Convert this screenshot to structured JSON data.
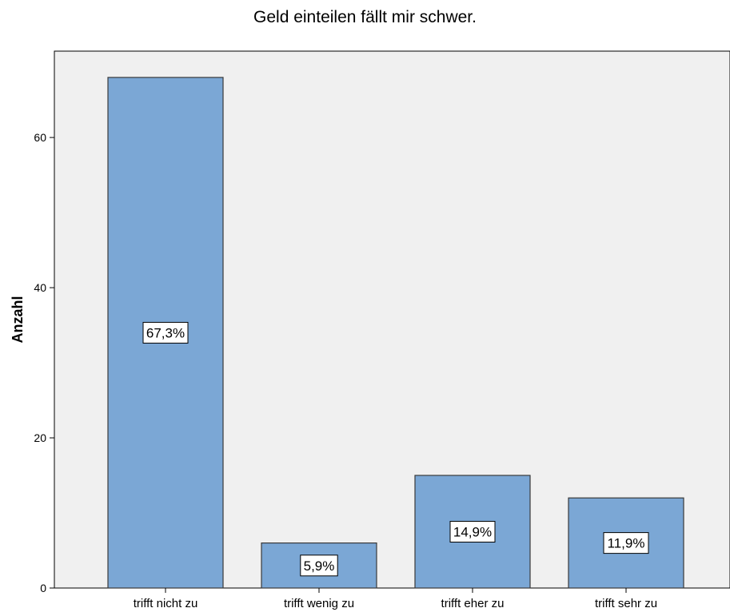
{
  "chart_data": {
    "type": "bar",
    "title": "Geld einteilen fällt mir schwer.",
    "xlabel": "",
    "ylabel": "Anzahl",
    "categories": [
      "trifft nicht zu",
      "trifft wenig zu",
      "trifft eher zu",
      "trifft sehr zu"
    ],
    "values": [
      68,
      6,
      15,
      12
    ],
    "data_labels": [
      "67,3%",
      "5,9%",
      "14,9%",
      "11,9%"
    ],
    "y_ticks": [
      0,
      20,
      40,
      60
    ],
    "ylim": [
      0,
      71.5
    ],
    "grid": false,
    "legend": "none",
    "colors": {
      "bar_fill": "#7ba7d5",
      "bar_stroke": "#3a3a3a",
      "plot_bg": "#f0f0f0"
    }
  }
}
